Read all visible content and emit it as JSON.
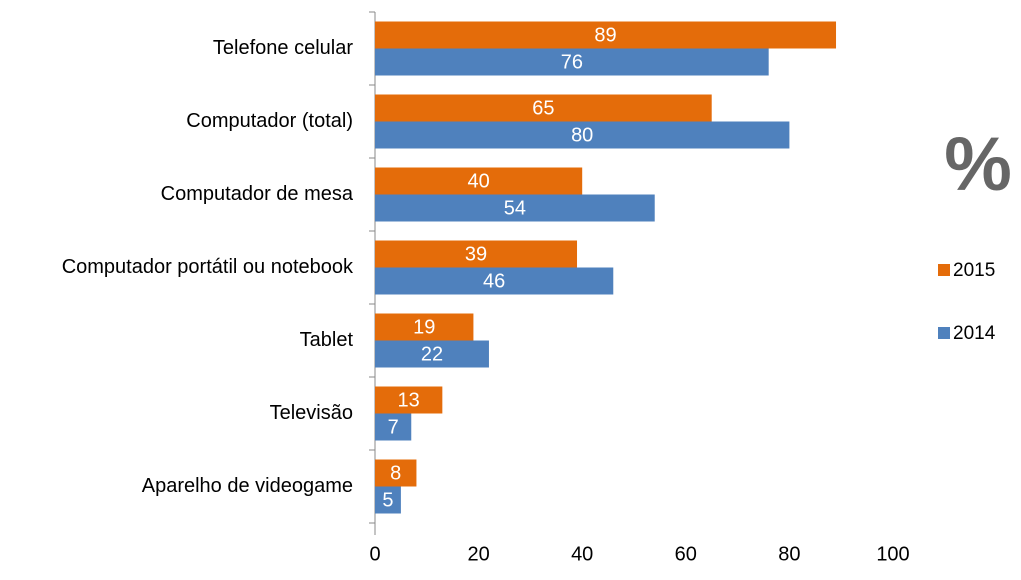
{
  "chart_data": {
    "type": "barh",
    "categories": [
      "Telefone celular",
      "Computador (total)",
      "Computador de mesa",
      "Computador portátil ou notebook",
      "Tablet",
      "Televisão",
      "Aparelho de videogame"
    ],
    "series": [
      {
        "name": "2015",
        "color": "#e46c0a",
        "values": [
          89,
          65,
          40,
          39,
          19,
          13,
          8
        ]
      },
      {
        "name": "2014",
        "color": "#4f81bd",
        "values": [
          76,
          80,
          54,
          46,
          22,
          7,
          5
        ]
      }
    ],
    "unit_label": "%",
    "xlim": [
      0,
      100
    ],
    "xticks": [
      0,
      20,
      40,
      60,
      80,
      100
    ],
    "grid": false,
    "legend": "right"
  }
}
